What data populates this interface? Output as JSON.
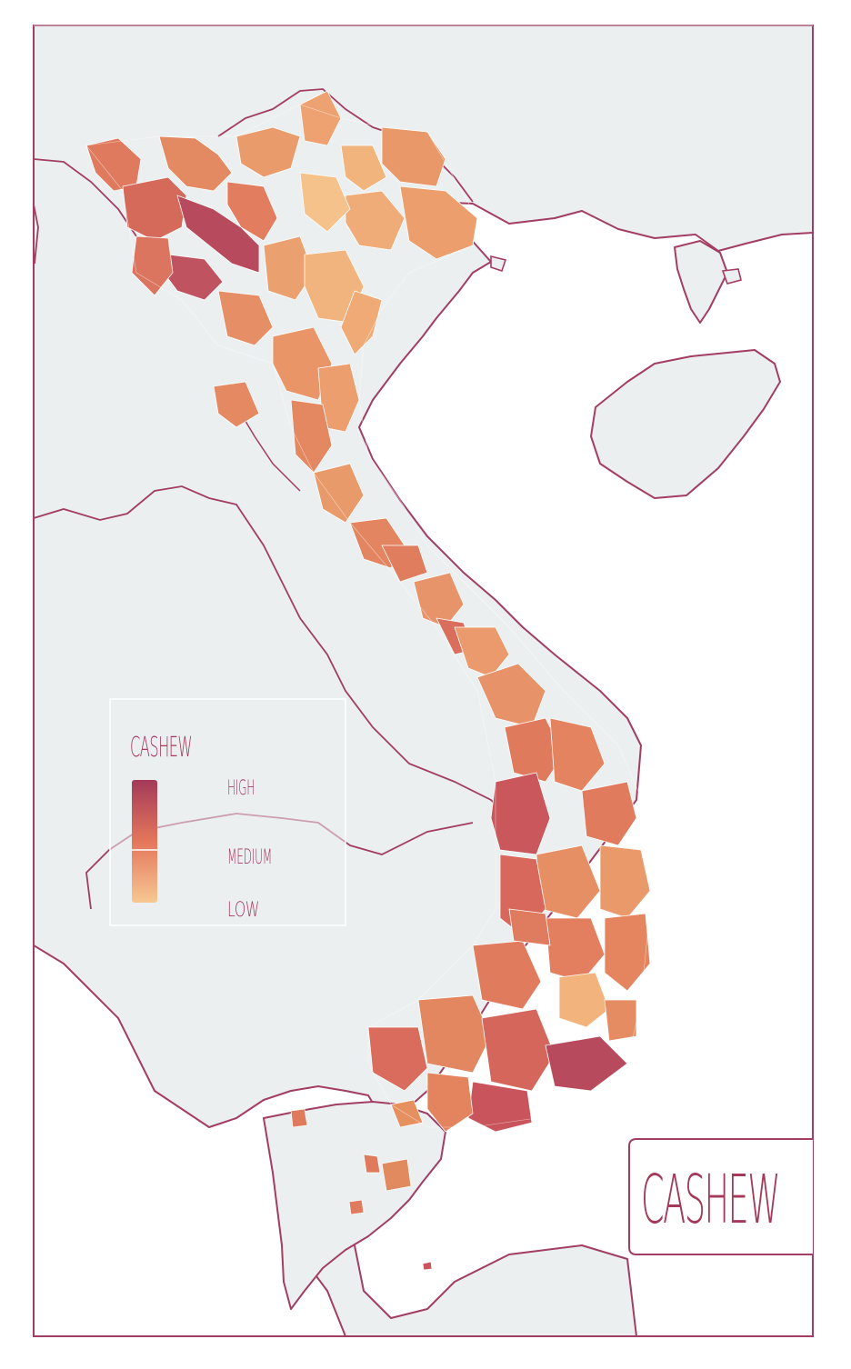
{
  "map": {
    "subject": "Cashew",
    "region_highlighted": "Vietnam",
    "color_scale": {
      "low": "#f5c58f",
      "medium": "#e4765b",
      "high": "#a33a5a"
    },
    "colors": {
      "land": "#ecefef",
      "sea": "#ffffff",
      "border": "#a23d64"
    }
  },
  "legend": {
    "title": "CASHEW",
    "high_label": "HIGH",
    "medium_label": "MEDIUM",
    "low_label": "LOW"
  },
  "title_box": {
    "text": "CASHEW"
  }
}
